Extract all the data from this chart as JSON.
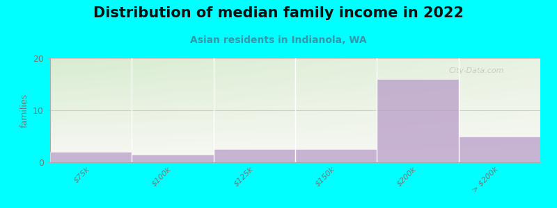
{
  "title": "Distribution of median family income in 2022",
  "subtitle": "Asian residents in Indianola, WA",
  "ylabel": "families",
  "categories": [
    "$75k",
    "$100k",
    "$125k",
    "$150k",
    "$200k",
    "> $200k"
  ],
  "values": [
    2,
    1.5,
    2.5,
    2.5,
    16,
    5
  ],
  "bar_color": "#b89cc8",
  "bar_alpha": 0.75,
  "background_color": "#00ffff",
  "plot_bg_color_topleft": "#d8ecd0",
  "plot_bg_color_bottomright": "#f5f5f0",
  "ylim": [
    0,
    20
  ],
  "yticks": [
    0,
    10,
    20
  ],
  "grid_color": "#e8b0b0",
  "grid_alpha": 0.7,
  "title_fontsize": 15,
  "subtitle_fontsize": 10,
  "subtitle_color": "#3399aa",
  "watermark": "City-Data.com",
  "tick_color": "#777777",
  "tick_fontsize": 8
}
